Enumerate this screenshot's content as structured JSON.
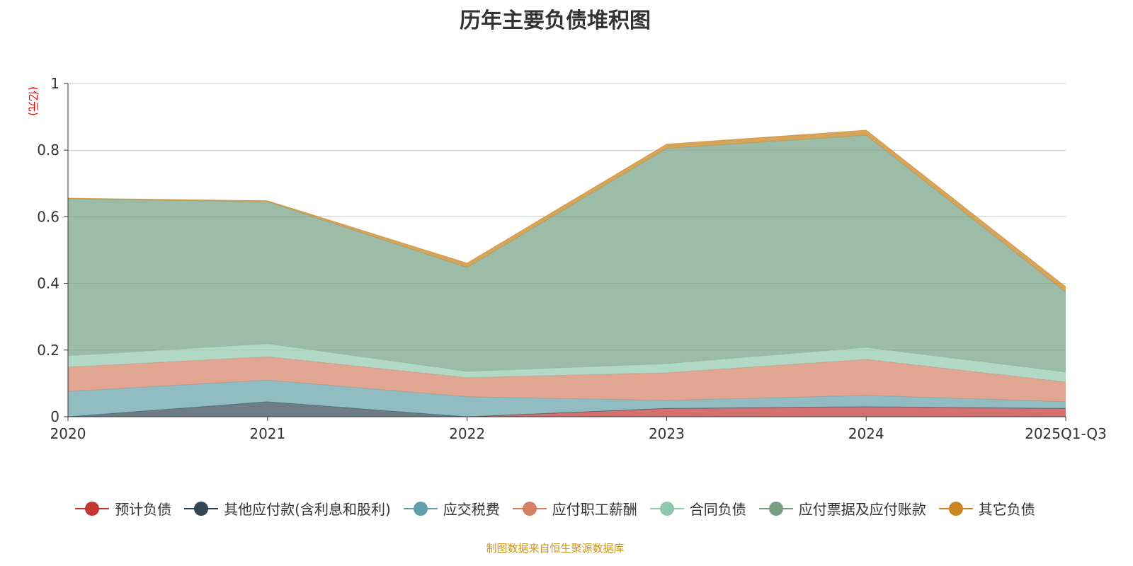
{
  "chart_data": {
    "type": "area",
    "stacked": true,
    "title": "历年主要负债堆积图",
    "ylabel": "(亿元)",
    "ylim": [
      0,
      1
    ],
    "yticks": [
      "0",
      "0.2",
      "0.4",
      "0.6",
      "0.8",
      "1"
    ],
    "categories": [
      "2020",
      "2021",
      "2022",
      "2023",
      "2024",
      "2025Q1-Q3"
    ],
    "grid": true,
    "legend_position": "bottom",
    "series": [
      {
        "name": "预计负债",
        "color": "#c23531",
        "values": [
          0,
          0,
          0,
          0.025,
          0.03,
          0.025
        ]
      },
      {
        "name": "其他应付款(含利息和股利)",
        "color": "#2f4554",
        "values": [
          0,
          0.045,
          0,
          0,
          0,
          0
        ]
      },
      {
        "name": "应交税费",
        "color": "#61a0a8",
        "values": [
          0.076,
          0.065,
          0.06,
          0.024,
          0.034,
          0.02
        ]
      },
      {
        "name": "应付职工薪酬",
        "color": "#d48265",
        "values": [
          0.073,
          0.07,
          0.057,
          0.083,
          0.108,
          0.059
        ]
      },
      {
        "name": "合同负债",
        "color": "#91c7ae",
        "values": [
          0.034,
          0.039,
          0.019,
          0.027,
          0.036,
          0.03
        ]
      },
      {
        "name": "应付票据及应付账款",
        "color": "#749f83",
        "values": [
          0.471,
          0.426,
          0.312,
          0.646,
          0.637,
          0.24
        ]
      },
      {
        "name": "其它负债",
        "color": "#ca8622",
        "values": [
          0.002,
          0.003,
          0.013,
          0.013,
          0.015,
          0.016
        ]
      }
    ]
  },
  "footer": "制图数据来自恒生聚源数据库"
}
